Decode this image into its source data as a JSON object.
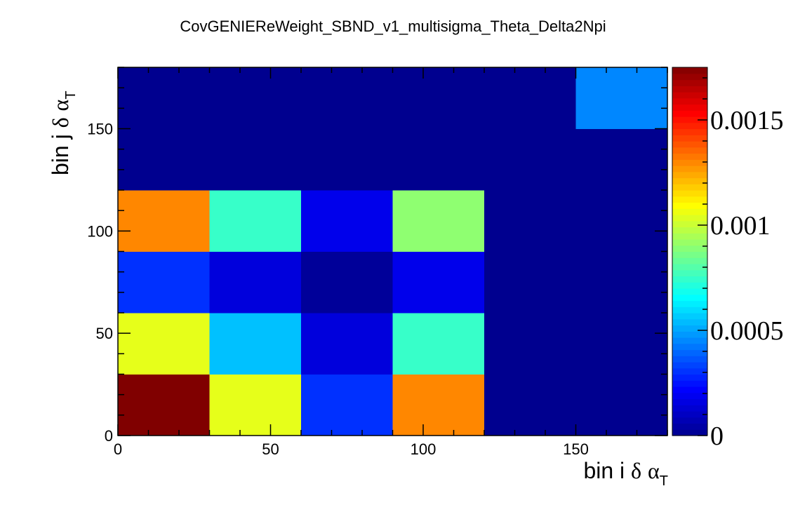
{
  "chart_data": {
    "type": "heatmap",
    "title": "CovGENIEReWeight_SBND_v1_multisigma_Theta_Delta2Npi",
    "xlabel": {
      "prefix": "bin i ",
      "delta": "δ",
      "alpha": "α",
      "sub": "T"
    },
    "ylabel": {
      "prefix": "bin j ",
      "delta": "δ",
      "alpha": "α",
      "sub": "T"
    },
    "xlim": [
      0,
      180
    ],
    "ylim": [
      0,
      180
    ],
    "x_ticks": [
      "0",
      "50",
      "100",
      "150"
    ],
    "x_tick_values": [
      0,
      50,
      100,
      150
    ],
    "y_ticks": [
      "0",
      "50",
      "100",
      "150"
    ],
    "y_tick_values": [
      0,
      50,
      100,
      150
    ],
    "bin_edges": [
      0,
      30,
      60,
      90,
      120,
      150,
      180
    ],
    "z_range": [
      0,
      0.00175
    ],
    "colorbar_ticks": [
      "0",
      "0.0005",
      "0.001",
      "0.0015"
    ],
    "colorbar_tick_values": [
      0,
      0.0005,
      0.001,
      0.0015
    ],
    "cells": [
      [
        0.00175,
        0.00105,
        0.0003,
        0.0013,
        0,
        0
      ],
      [
        0.00105,
        0.00055,
        0.00015,
        0.00075,
        0,
        0
      ],
      [
        0.0003,
        0.00015,
        2e-05,
        0.00018,
        0,
        0
      ],
      [
        0.0013,
        0.00075,
        0.00018,
        0.0009,
        0,
        0
      ],
      [
        0,
        0,
        0,
        0,
        0,
        0
      ],
      [
        0,
        0,
        0,
        0,
        0,
        0.00045
      ]
    ],
    "colormap": [
      "#00008f",
      "#0000ff",
      "#0080ff",
      "#00ffff",
      "#80ff80",
      "#ffff00",
      "#ff8000",
      "#ff0000",
      "#800000"
    ],
    "grid": false,
    "legend": "colorbar-right"
  }
}
